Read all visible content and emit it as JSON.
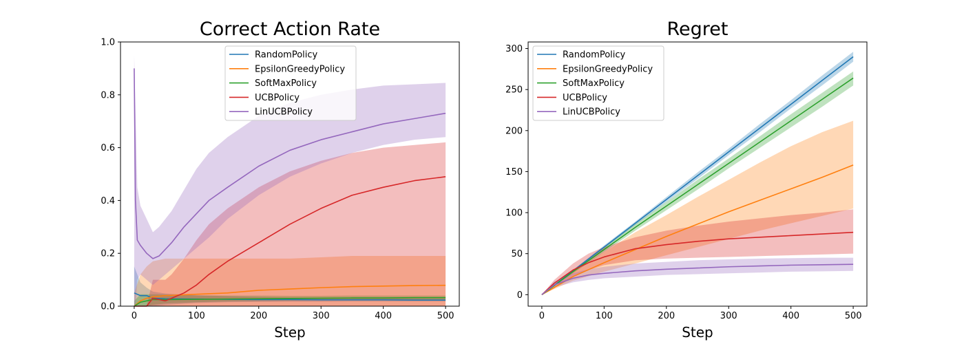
{
  "colors": {
    "RandomPolicy": "#1f77b4",
    "EpsilonGreedyPolicy": "#ff7f0e",
    "SoftMaxPolicy": "#2ca02c",
    "UCBPolicy": "#d62728",
    "LinUCBPolicy": "#9467bd"
  },
  "chart_data": [
    {
      "type": "line",
      "title": "Correct Action Rate",
      "xlabel": "Step",
      "ylabel": "",
      "xlim": [
        -22,
        522
      ],
      "ylim": [
        0,
        1.0
      ],
      "xticks": [
        0,
        100,
        200,
        300,
        400,
        500
      ],
      "yticks": [
        0.0,
        0.2,
        0.4,
        0.6,
        0.8,
        1.0
      ],
      "ytick_labels": [
        "0.0",
        "0.2",
        "0.4",
        "0.6",
        "0.8",
        "1.0"
      ],
      "legend_position": "upper-center",
      "shaded_band": true,
      "series": [
        {
          "name": "RandomPolicy",
          "x": [
            0,
            10,
            20,
            30,
            50,
            100,
            150,
            200,
            250,
            300,
            350,
            400,
            450,
            500
          ],
          "y": [
            0.05,
            0.04,
            0.04,
            0.03,
            0.028,
            0.027,
            0.026,
            0.025,
            0.025,
            0.024,
            0.024,
            0.024,
            0.023,
            0.023
          ],
          "lower": [
            0.0,
            0.0,
            0.0,
            0.0,
            0.005,
            0.012,
            0.015,
            0.016,
            0.017,
            0.017,
            0.018,
            0.018,
            0.018,
            0.018
          ],
          "upper": [
            0.15,
            0.09,
            0.07,
            0.055,
            0.048,
            0.041,
            0.038,
            0.035,
            0.033,
            0.032,
            0.031,
            0.03,
            0.029,
            0.028
          ]
        },
        {
          "name": "EpsilonGreedyPolicy",
          "x": [
            0,
            10,
            20,
            30,
            50,
            100,
            150,
            200,
            250,
            300,
            350,
            400,
            450,
            500
          ],
          "y": [
            0.0,
            0.02,
            0.03,
            0.035,
            0.04,
            0.045,
            0.05,
            0.06,
            0.065,
            0.07,
            0.074,
            0.076,
            0.078,
            0.079
          ],
          "lower": [
            0.0,
            0.0,
            0.0,
            0.0,
            0.0,
            0.0,
            0.0,
            0.0,
            0.0,
            0.0,
            0.0,
            0.0,
            0.0,
            0.0
          ],
          "upper": [
            0.05,
            0.12,
            0.15,
            0.17,
            0.18,
            0.18,
            0.18,
            0.18,
            0.18,
            0.185,
            0.19,
            0.19,
            0.19,
            0.19
          ]
        },
        {
          "name": "SoftMaxPolicy",
          "x": [
            0,
            10,
            20,
            30,
            50,
            100,
            150,
            200,
            250,
            300,
            350,
            400,
            450,
            500
          ],
          "y": [
            0.0,
            0.015,
            0.02,
            0.025,
            0.025,
            0.026,
            0.027,
            0.028,
            0.029,
            0.03,
            0.031,
            0.031,
            0.032,
            0.032
          ],
          "lower": [
            0.0,
            0.0,
            0.0,
            0.005,
            0.01,
            0.015,
            0.018,
            0.02,
            0.021,
            0.022,
            0.023,
            0.024,
            0.024,
            0.025
          ],
          "upper": [
            0.02,
            0.045,
            0.045,
            0.045,
            0.044,
            0.041,
            0.04,
            0.04,
            0.039,
            0.039,
            0.04,
            0.04,
            0.04,
            0.04
          ]
        },
        {
          "name": "UCBPolicy",
          "x": [
            0,
            10,
            20,
            30,
            40,
            50,
            60,
            80,
            100,
            120,
            150,
            200,
            250,
            300,
            350,
            400,
            450,
            500
          ],
          "y": [
            0.0,
            0.0,
            0.0,
            0.03,
            0.025,
            0.02,
            0.03,
            0.05,
            0.08,
            0.12,
            0.17,
            0.24,
            0.31,
            0.37,
            0.42,
            0.45,
            0.475,
            0.49
          ],
          "lower": [
            0.0,
            0.0,
            0.0,
            0.0,
            0.0,
            0.0,
            0.0,
            0.0,
            0.0,
            0.0,
            0.0,
            0.0,
            0.0,
            0.0,
            0.0,
            0.0,
            0.0,
            0.0
          ],
          "upper": [
            0.0,
            0.0,
            0.0,
            0.1,
            0.1,
            0.1,
            0.12,
            0.18,
            0.25,
            0.31,
            0.37,
            0.45,
            0.51,
            0.55,
            0.58,
            0.6,
            0.61,
            0.62
          ]
        },
        {
          "name": "LinUCBPolicy",
          "x": [
            0,
            2,
            5,
            10,
            20,
            30,
            40,
            60,
            80,
            100,
            120,
            150,
            200,
            250,
            300,
            350,
            400,
            450,
            500
          ],
          "y": [
            0.9,
            0.4,
            0.25,
            0.23,
            0.2,
            0.18,
            0.19,
            0.24,
            0.3,
            0.35,
            0.4,
            0.45,
            0.53,
            0.59,
            0.63,
            0.66,
            0.69,
            0.71,
            0.73
          ],
          "lower": [
            0.0,
            0.0,
            0.1,
            0.12,
            0.1,
            0.08,
            0.1,
            0.14,
            0.18,
            0.22,
            0.26,
            0.33,
            0.42,
            0.49,
            0.54,
            0.58,
            0.61,
            0.63,
            0.64
          ],
          "upper": [
            0.95,
            0.75,
            0.45,
            0.38,
            0.33,
            0.28,
            0.3,
            0.36,
            0.44,
            0.52,
            0.58,
            0.64,
            0.72,
            0.77,
            0.8,
            0.82,
            0.835,
            0.84,
            0.845
          ]
        }
      ]
    },
    {
      "type": "line",
      "title": "Regret",
      "xlabel": "Step",
      "ylabel": "",
      "xlim": [
        -22,
        522
      ],
      "ylim": [
        -14,
        308
      ],
      "xticks": [
        0,
        100,
        200,
        300,
        400,
        500
      ],
      "yticks": [
        0,
        50,
        100,
        150,
        200,
        250,
        300
      ],
      "ytick_labels": [
        "0",
        "50",
        "100",
        "150",
        "200",
        "250",
        "300"
      ],
      "legend_position": "upper-left",
      "shaded_band": true,
      "series": [
        {
          "name": "RandomPolicy",
          "x": [
            0,
            50,
            100,
            150,
            200,
            250,
            300,
            350,
            400,
            450,
            500
          ],
          "y": [
            0,
            29,
            58,
            87,
            116,
            145,
            174,
            203,
            232,
            261,
            290
          ],
          "lower": [
            0,
            28,
            56,
            85,
            113,
            141,
            170,
            198,
            227,
            255,
            284
          ],
          "upper": [
            0,
            30,
            60,
            89,
            119,
            149,
            178,
            208,
            237,
            267,
            296
          ]
        },
        {
          "name": "EpsilonGreedyPolicy",
          "x": [
            0,
            50,
            100,
            150,
            200,
            250,
            300,
            350,
            400,
            450,
            500
          ],
          "y": [
            0,
            22,
            39,
            55,
            71,
            86,
            101,
            115,
            129,
            143,
            158
          ],
          "lower": [
            0,
            17,
            28,
            38,
            48,
            58,
            68,
            78,
            87,
            96,
            105
          ],
          "upper": [
            0,
            28,
            52,
            76,
            97,
            119,
            140,
            161,
            181,
            198,
            212
          ]
        },
        {
          "name": "SoftMaxPolicy",
          "x": [
            0,
            50,
            100,
            150,
            200,
            250,
            300,
            350,
            400,
            450,
            500
          ],
          "y": [
            0,
            28,
            55,
            82,
            108,
            134,
            160,
            186,
            212,
            238,
            264
          ],
          "lower": [
            0,
            26,
            52,
            78,
            103,
            128,
            154,
            179,
            204,
            229,
            255
          ],
          "upper": [
            0,
            30,
            58,
            86,
            113,
            140,
            166,
            193,
            220,
            246,
            272
          ]
        },
        {
          "name": "UCBPolicy",
          "x": [
            0,
            20,
            50,
            75,
            100,
            150,
            200,
            250,
            300,
            350,
            400,
            450,
            500
          ],
          "y": [
            0,
            14,
            30,
            39,
            46,
            56,
            61,
            65,
            68,
            70,
            72,
            74,
            76
          ],
          "lower": [
            0,
            10,
            22,
            30,
            36,
            42,
            44,
            45,
            46,
            47,
            48,
            49,
            50
          ],
          "upper": [
            0,
            18,
            38,
            50,
            58,
            70,
            78,
            84,
            89,
            93,
            97,
            100,
            104
          ]
        },
        {
          "name": "LinUCBPolicy",
          "x": [
            0,
            20,
            50,
            75,
            100,
            150,
            200,
            250,
            300,
            350,
            400,
            450,
            500
          ],
          "y": [
            0,
            12,
            20,
            24,
            26,
            29,
            31,
            32.5,
            34,
            35,
            36,
            36.5,
            37
          ],
          "lower": [
            0,
            9,
            15,
            18,
            20,
            22,
            24,
            25,
            26,
            27,
            28,
            28.5,
            29
          ],
          "upper": [
            0,
            16,
            26,
            31,
            34,
            38,
            40,
            42,
            43,
            44,
            44.5,
            45,
            45
          ]
        }
      ]
    }
  ]
}
